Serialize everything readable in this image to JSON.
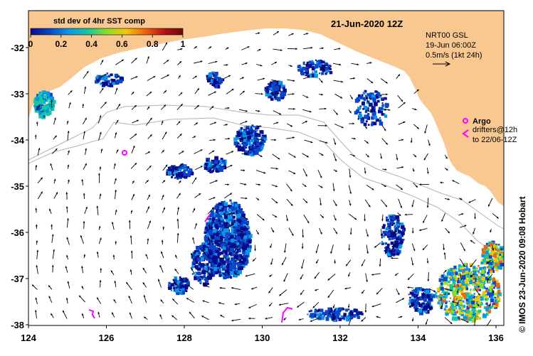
{
  "map": {
    "date_title": "21-Jun-2020 12Z",
    "credit": "© IMOS 23-Jun-2020 09:08 Hobart",
    "colors": {
      "land": "#f9c891",
      "ocean": "#ffffff",
      "arrows": "#000000",
      "argo": "#ff00ff",
      "shelf_contour": "#b4b4b4"
    }
  },
  "colorbar": {
    "title": "std dev of 4hr SST comp",
    "ticks": [
      "0",
      "0.2",
      "0.4",
      "0.6",
      "0.8",
      "1"
    ],
    "stops": [
      "#0a0a8c",
      "#0a46c8",
      "#0a96e6",
      "#14c8a0",
      "#8cdc28",
      "#f0c80a",
      "#f06414",
      "#b41414",
      "#6e0a0a"
    ]
  },
  "legend": {
    "current_product": "NRT00 GSL",
    "current_time": "19-Jun 06:00Z",
    "scale_text": "0.5m/s (1kt 24h)",
    "argo_label": "Argo",
    "drifters_line1": "drifters@12h",
    "drifters_line2": "to 22/06-12Z"
  },
  "axes": {
    "x_ticks": [
      "124",
      "126",
      "128",
      "130",
      "132",
      "134",
      "136"
    ],
    "y_ticks": [
      "-32",
      "-33",
      "-34",
      "-35",
      "-36",
      "-37",
      "-38"
    ]
  }
}
